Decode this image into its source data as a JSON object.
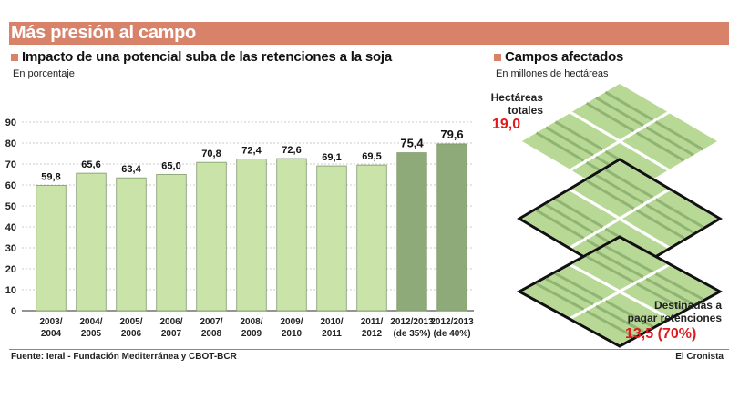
{
  "header": {
    "title": "Más presión al campo"
  },
  "left": {
    "subtitle": "Impacto de una potencial suba de las retenciones a la soja",
    "unit": "En porcentaje"
  },
  "right": {
    "subtitle": "Campos afectados",
    "unit": "En millones de hectáreas",
    "total_label_1": "Hectáreas",
    "total_label_2": "totales",
    "total_value": "19,0",
    "dest_label_1": "Destinadas a",
    "dest_label_2": "pagar retenciones",
    "dest_value": "13,5 (70%)"
  },
  "footer": {
    "source": "Fuente: Ieral - Fundación Mediterránea y CBOT-BCR",
    "brand": "El Cronista"
  },
  "chart_data": {
    "type": "bar",
    "categories": [
      [
        "2003/",
        "2004"
      ],
      [
        "2004/",
        "2005"
      ],
      [
        "2005/",
        "2006"
      ],
      [
        "2006/",
        "2007"
      ],
      [
        "2007/",
        "2008"
      ],
      [
        "2008/",
        "2009"
      ],
      [
        "2009/",
        "2010"
      ],
      [
        "2010/",
        "2011"
      ],
      [
        "2011/",
        "2012"
      ],
      [
        "2012/2013",
        "(de 35%)"
      ],
      [
        "2012/2013",
        "(de 40%)"
      ]
    ],
    "values": [
      59.8,
      65.6,
      63.4,
      65.0,
      70.8,
      72.4,
      72.6,
      69.1,
      69.5,
      75.4,
      79.6
    ],
    "labels": [
      "59,8",
      "65,6",
      "63,4",
      "65,0",
      "70,8",
      "72,4",
      "72,6",
      "69,1",
      "69,5",
      "75,4",
      "79,6"
    ],
    "highlight": [
      false,
      false,
      false,
      false,
      false,
      false,
      false,
      false,
      false,
      true,
      true
    ],
    "ylim": [
      0,
      90
    ],
    "yticks": [
      0,
      10,
      20,
      30,
      40,
      50,
      60,
      70,
      80,
      90
    ],
    "grid": true,
    "colors": {
      "bar": "#c9e3a8",
      "bar_highlight": "#8daa78",
      "bar_edge": "#7f9a6a"
    }
  }
}
